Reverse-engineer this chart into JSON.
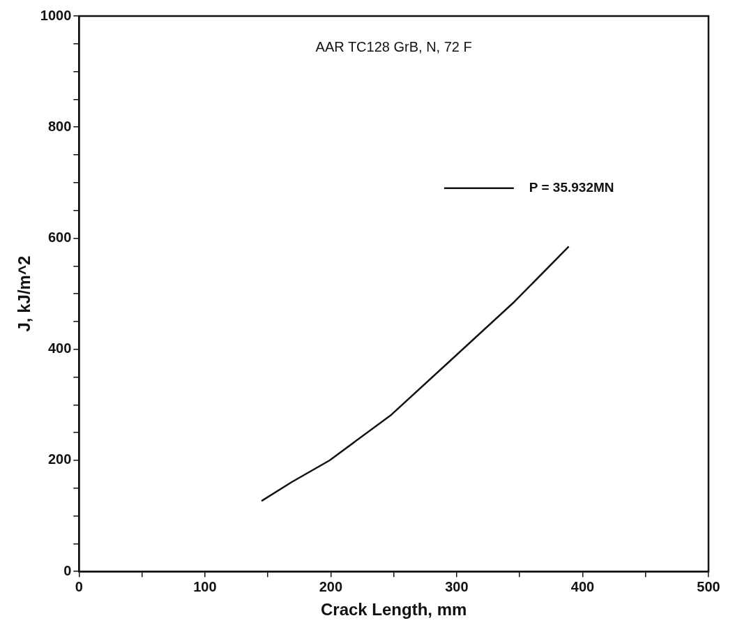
{
  "chart_data": {
    "type": "line",
    "title": "AAR TC128 GrB, N, 72 F",
    "xlabel": "Crack Length, mm",
    "ylabel": "J, kJ/m^2",
    "series": [
      {
        "name": "P = 35.932MN",
        "color": "#111111",
        "x": [
          145,
          169,
          199,
          248,
          299,
          346,
          389
        ],
        "values": [
          127,
          161,
          200,
          282,
          388,
          486,
          585
        ]
      }
    ],
    "xlim": [
      0,
      500
    ],
    "ylim": [
      0,
      1000
    ],
    "xticks": [
      0,
      {
        "value": 50,
        "label": null
      },
      100,
      {
        "value": 150,
        "label": null
      },
      200,
      {
        "value": 250,
        "label": null
      },
      300,
      {
        "value": 350,
        "label": null
      },
      400,
      {
        "value": 450,
        "label": null
      },
      500
    ],
    "yticks": [
      0,
      {
        "value": 50,
        "label": null
      },
      {
        "value": 100,
        "label": null
      },
      {
        "value": 150,
        "label": null
      },
      200,
      {
        "value": 250,
        "label": null
      },
      {
        "value": 300,
        "label": null
      },
      {
        "value": 350,
        "label": null
      },
      400,
      {
        "value": 450,
        "label": null
      },
      {
        "value": 500,
        "label": null
      },
      {
        "value": 550,
        "label": null
      },
      600,
      {
        "value": 650,
        "label": null
      },
      {
        "value": 700,
        "label": null
      },
      {
        "value": 750,
        "label": null
      },
      800,
      {
        "value": 850,
        "label": null
      },
      {
        "value": 900,
        "label": null
      },
      {
        "value": 950,
        "label": null
      },
      1000
    ],
    "grid": false,
    "legend": "top right",
    "marker": "none",
    "line_style": "solid"
  }
}
